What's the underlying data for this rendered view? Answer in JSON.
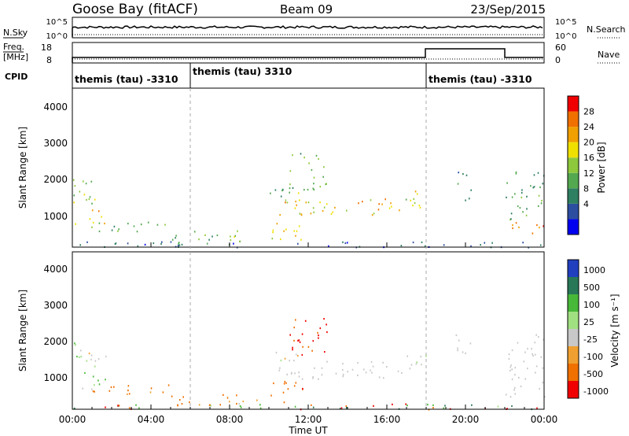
{
  "header": {
    "station": "Goose Bay (fitACF)",
    "beam": "Beam 09",
    "date": "23/Sep/2015"
  },
  "panels": {
    "nsky_label": "N.Sky",
    "nsky_ticks": [
      "10^5",
      "10^0"
    ],
    "nsearch_label": "N.Search",
    "nsearch_ticks": [
      "10^5",
      "10^0"
    ],
    "freq_label_1": "Freq.",
    "freq_label_2": "[MHz]",
    "freq_ticks": [
      "18",
      "8"
    ],
    "nave_label": "Nave",
    "nave_ticks": [
      "60",
      "0"
    ],
    "cpid_label": "CPID",
    "cpid_segments": [
      {
        "label": "themis (tau) -3310",
        "start_hour": 0
      },
      {
        "label": "themis (tau) 3310",
        "start_hour": 6
      },
      {
        "label": "themis (tau) -3310",
        "start_hour": 18
      }
    ]
  },
  "chart_data": [
    {
      "type": "heatmap",
      "title": "",
      "ylabel": "Slant Range [km]",
      "xlabel": "",
      "xlim_hours": [
        0,
        24
      ],
      "ylim": [
        180,
        4600
      ],
      "yticks": [
        "1000",
        "2000",
        "3000",
        "4000"
      ],
      "colorbar": {
        "label": "Power [dB]",
        "ticks": [
          "28",
          "24",
          "20",
          "16",
          "12",
          "8",
          "4"
        ],
        "colors": [
          "#0000f0",
          "#2c4ea0",
          "#2f7f62",
          "#54a84f",
          "#8ec83c",
          "#f0e000",
          "#f0a000",
          "#f07000",
          "#f00000"
        ]
      }
    },
    {
      "type": "heatmap",
      "title": "",
      "ylabel": "Slant Range [km]",
      "xlabel": "Time UT",
      "xlim_hours": [
        0,
        24
      ],
      "ylim": [
        180,
        4600
      ],
      "yticks": [
        "1000",
        "2000",
        "3000",
        "4000"
      ],
      "xticks": [
        "00:00",
        "04:00",
        "08:00",
        "12:00",
        "16:00",
        "20:00",
        "00:00"
      ],
      "colorbar": {
        "label": "Velocity [m s⁻¹]",
        "ticks": [
          "1000",
          "500",
          "100",
          "25",
          "-25",
          "-100",
          "-500",
          "-1000"
        ],
        "colors": [
          "#2040c0",
          "#287858",
          "#48b838",
          "#a0e080",
          "#c8c8c8",
          "#f0a030",
          "#f07000",
          "#f00000"
        ]
      }
    }
  ],
  "scatter_regions": [
    {
      "t0": 0.0,
      "t1": 1.7,
      "r0": 1350,
      "r1": 2100,
      "p": [
        12,
        20
      ],
      "v": [
        -50,
        120
      ]
    },
    {
      "t0": 0.5,
      "t1": 1.8,
      "r0": 850,
      "r1": 1250,
      "p": [
        16,
        26
      ],
      "v": [
        60,
        400
      ]
    },
    {
      "t0": 0.0,
      "t1": 1.0,
      "r0": 700,
      "r1": 900,
      "p": [
        14,
        22
      ],
      "v": [
        -30,
        30
      ]
    },
    {
      "t0": 1.0,
      "t1": 5.0,
      "r0": 600,
      "r1": 900,
      "p": [
        8,
        16
      ],
      "v": [
        -400,
        -80
      ]
    },
    {
      "t0": 5.0,
      "t1": 9.0,
      "r0": 300,
      "r1": 650,
      "p": [
        8,
        18
      ],
      "v": [
        -300,
        -60
      ]
    },
    {
      "t0": 8.0,
      "t1": 9.5,
      "r0": 350,
      "r1": 550,
      "p": [
        14,
        22
      ],
      "v": [
        -150,
        60
      ]
    },
    {
      "t0": 10.0,
      "t1": 11.7,
      "r0": 350,
      "r1": 1000,
      "p": [
        16,
        26
      ],
      "v": [
        -700,
        -120
      ]
    },
    {
      "t0": 10.0,
      "t1": 11.5,
      "r0": 1500,
      "r1": 1900,
      "p": [
        8,
        16
      ],
      "v": [
        -40,
        60
      ]
    },
    {
      "t0": 11.0,
      "t1": 13.0,
      "r0": 1700,
      "r1": 2800,
      "p": [
        10,
        18
      ],
      "v": [
        -900,
        -200
      ]
    },
    {
      "t0": 10.5,
      "t1": 17.5,
      "r0": 1050,
      "r1": 1550,
      "p": [
        14,
        27
      ],
      "v": [
        -20,
        20
      ]
    },
    {
      "t0": 17.0,
      "t1": 18.0,
      "r0": 1300,
      "r1": 1800,
      "p": [
        18,
        26
      ],
      "v": [
        -15,
        60
      ]
    },
    {
      "t0": 19.5,
      "t1": 20.3,
      "r0": 1500,
      "r1": 2300,
      "p": [
        6,
        14
      ],
      "v": [
        -20,
        20
      ]
    },
    {
      "t0": 22.0,
      "t1": 24.0,
      "r0": 550,
      "r1": 900,
      "p": [
        22,
        30
      ],
      "v": [
        -20,
        20
      ]
    },
    {
      "t0": 22.0,
      "t1": 24.0,
      "r0": 950,
      "r1": 2300,
      "p": [
        8,
        16
      ],
      "v": [
        -20,
        20
      ]
    },
    {
      "t0": 0.0,
      "t1": 24.0,
      "r0": 190,
      "r1": 350,
      "p": [
        2,
        10
      ],
      "v": [
        -1000,
        1000
      ]
    }
  ]
}
